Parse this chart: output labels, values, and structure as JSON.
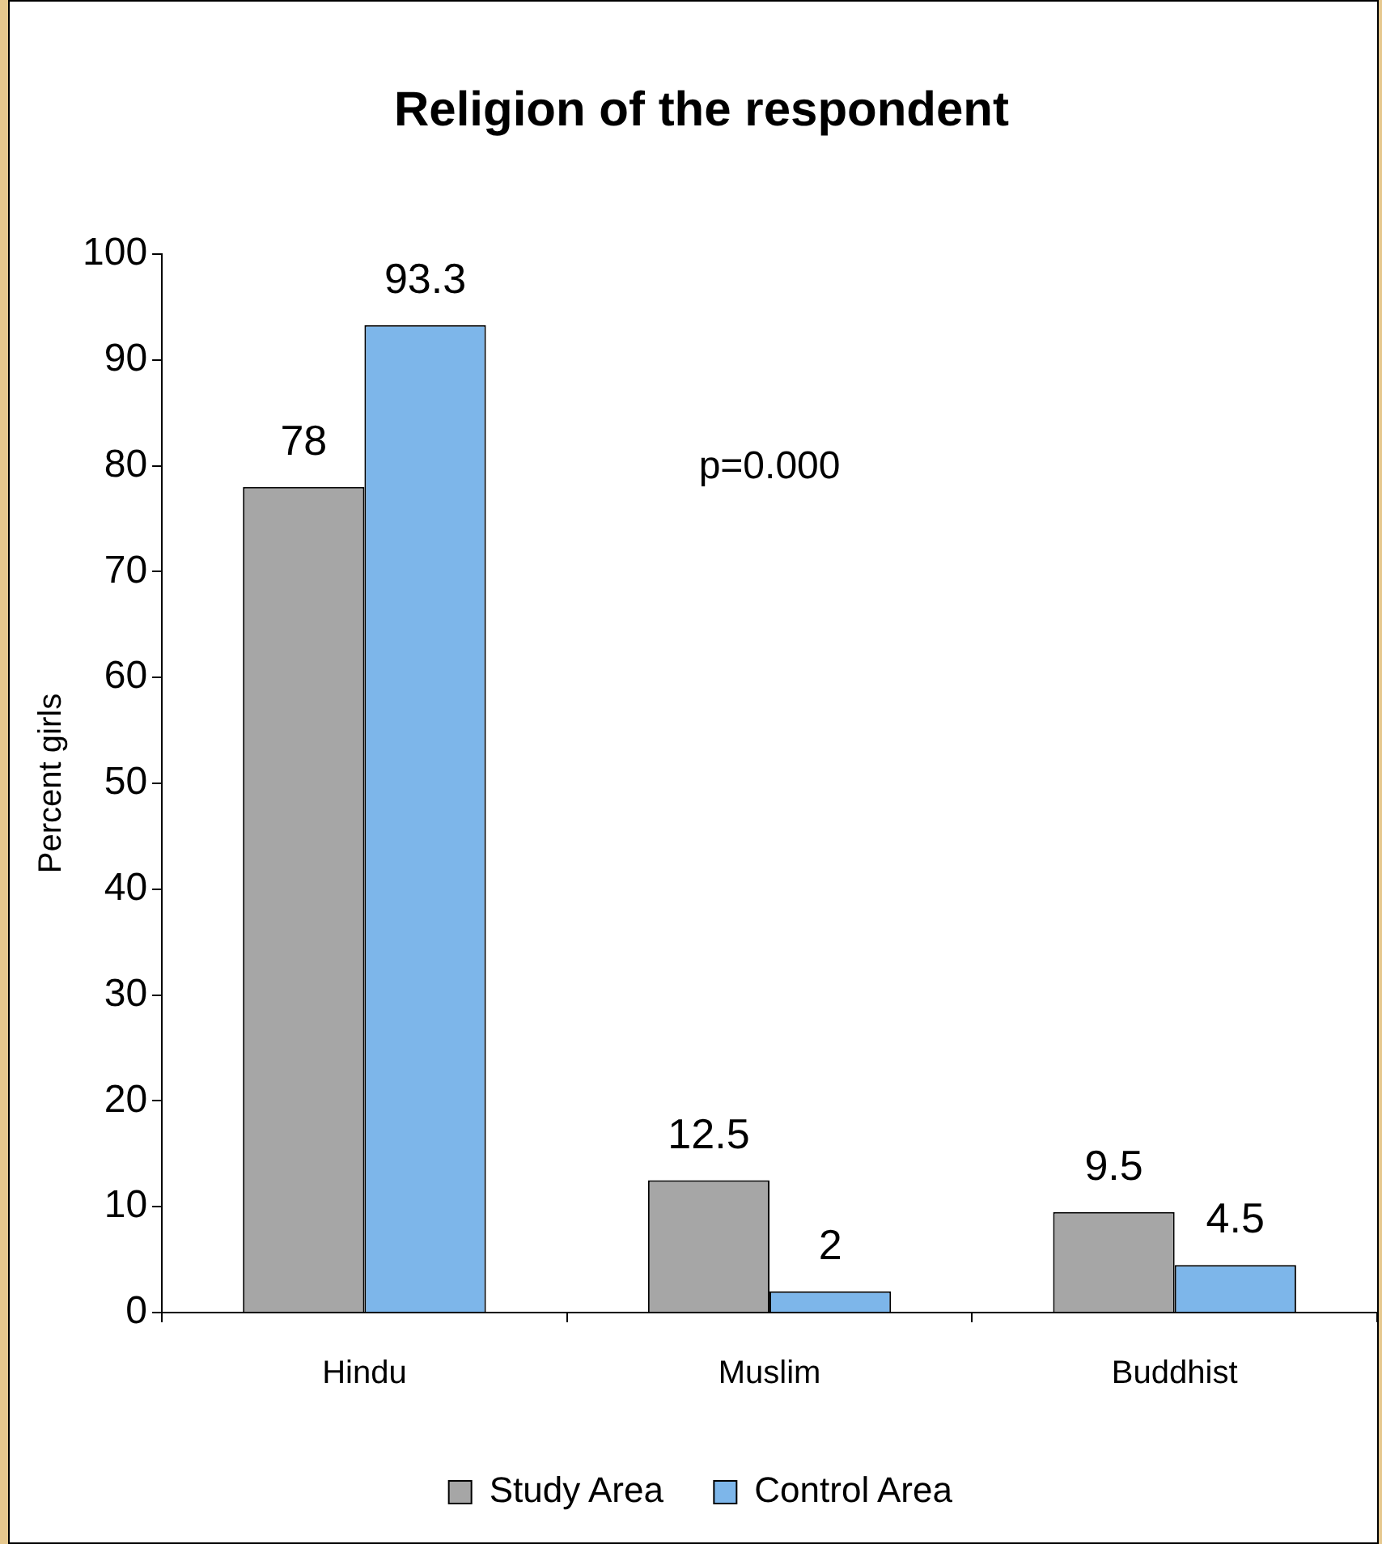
{
  "chart_data": {
    "type": "bar",
    "title": "Religion of the respondent",
    "ylabel": "Percent girls",
    "categories": [
      "Hindu",
      "Muslim",
      "Buddhist"
    ],
    "series": [
      {
        "name": "Study Area",
        "color": "#a6a6a6",
        "values": [
          78,
          12.5,
          9.5
        ]
      },
      {
        "name": "Control Area",
        "color": "#7db6ea",
        "values": [
          93.3,
          2,
          4.5
        ]
      }
    ],
    "ylim": [
      0,
      100
    ],
    "yticks": [
      0,
      10,
      20,
      30,
      40,
      50,
      60,
      70,
      80,
      90,
      100
    ],
    "grid": false,
    "legend": "bottom",
    "data_labels": true,
    "annotations": [
      "p=0.000"
    ]
  }
}
